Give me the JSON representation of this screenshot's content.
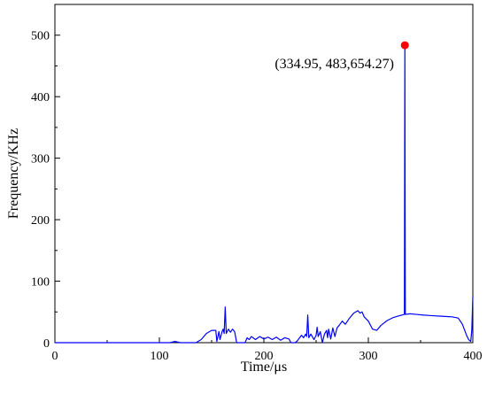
{
  "chart_data": {
    "type": "line",
    "title": "",
    "xlabel": "Time/μs",
    "ylabel": "Frequency/KHz",
    "xlim": [
      0,
      400
    ],
    "ylim": [
      0,
      550
    ],
    "xticks": [
      0,
      100,
      200,
      300,
      400
    ],
    "yticks": [
      0,
      100,
      200,
      300,
      400,
      500
    ],
    "grid": false,
    "legend": "none",
    "series": [
      {
        "color": "#0000ff",
        "points": [
          [
            0,
            0
          ],
          [
            100,
            0
          ],
          [
            110,
            0
          ],
          [
            115,
            2
          ],
          [
            120,
            0
          ],
          [
            135,
            0
          ],
          [
            140,
            5
          ],
          [
            145,
            15
          ],
          [
            150,
            20
          ],
          [
            154,
            20
          ],
          [
            155,
            2
          ],
          [
            157,
            18
          ],
          [
            158,
            5
          ],
          [
            160,
            18
          ],
          [
            161,
            22
          ],
          [
            162,
            15
          ],
          [
            163,
            58
          ],
          [
            164,
            15
          ],
          [
            166,
            22
          ],
          [
            168,
            17
          ],
          [
            170,
            22
          ],
          [
            172,
            18
          ],
          [
            174,
            0
          ],
          [
            178,
            0
          ],
          [
            182,
            0
          ],
          [
            184,
            8
          ],
          [
            186,
            5
          ],
          [
            188,
            10
          ],
          [
            192,
            5
          ],
          [
            196,
            10
          ],
          [
            200,
            6
          ],
          [
            204,
            9
          ],
          [
            208,
            5
          ],
          [
            212,
            9
          ],
          [
            216,
            4
          ],
          [
            220,
            8
          ],
          [
            224,
            6
          ],
          [
            226,
            0
          ],
          [
            230,
            0
          ],
          [
            232,
            3
          ],
          [
            236,
            12
          ],
          [
            238,
            8
          ],
          [
            240,
            14
          ],
          [
            241,
            10
          ],
          [
            242,
            45
          ],
          [
            243,
            8
          ],
          [
            245,
            14
          ],
          [
            248,
            5
          ],
          [
            250,
            12
          ],
          [
            251,
            25
          ],
          [
            252,
            10
          ],
          [
            254,
            18
          ],
          [
            256,
            0
          ],
          [
            258,
            14
          ],
          [
            260,
            20
          ],
          [
            261,
            8
          ],
          [
            262,
            22
          ],
          [
            264,
            6
          ],
          [
            266,
            24
          ],
          [
            268,
            10
          ],
          [
            270,
            24
          ],
          [
            272,
            28
          ],
          [
            275,
            35
          ],
          [
            278,
            30
          ],
          [
            282,
            40
          ],
          [
            286,
            48
          ],
          [
            290,
            52
          ],
          [
            292,
            48
          ],
          [
            294,
            50
          ],
          [
            296,
            42
          ],
          [
            300,
            35
          ],
          [
            304,
            22
          ],
          [
            308,
            20
          ],
          [
            312,
            28
          ],
          [
            318,
            36
          ],
          [
            324,
            41
          ],
          [
            330,
            44
          ],
          [
            334.5,
            46
          ],
          [
            334.95,
            483.65
          ],
          [
            335.4,
            46
          ],
          [
            340,
            47
          ],
          [
            346,
            46
          ],
          [
            352,
            45
          ],
          [
            360,
            44
          ],
          [
            370,
            43
          ],
          [
            380,
            42
          ],
          [
            386,
            40
          ],
          [
            390,
            30
          ],
          [
            394,
            12
          ],
          [
            396,
            5
          ],
          [
            398,
            2
          ],
          [
            399,
            20
          ],
          [
            400,
            75
          ]
        ]
      }
    ],
    "highlight_point": {
      "x": 334.95,
      "y": 483.654,
      "color": "#ff0000"
    },
    "annotation": "(334.95, 483,654.27)"
  }
}
